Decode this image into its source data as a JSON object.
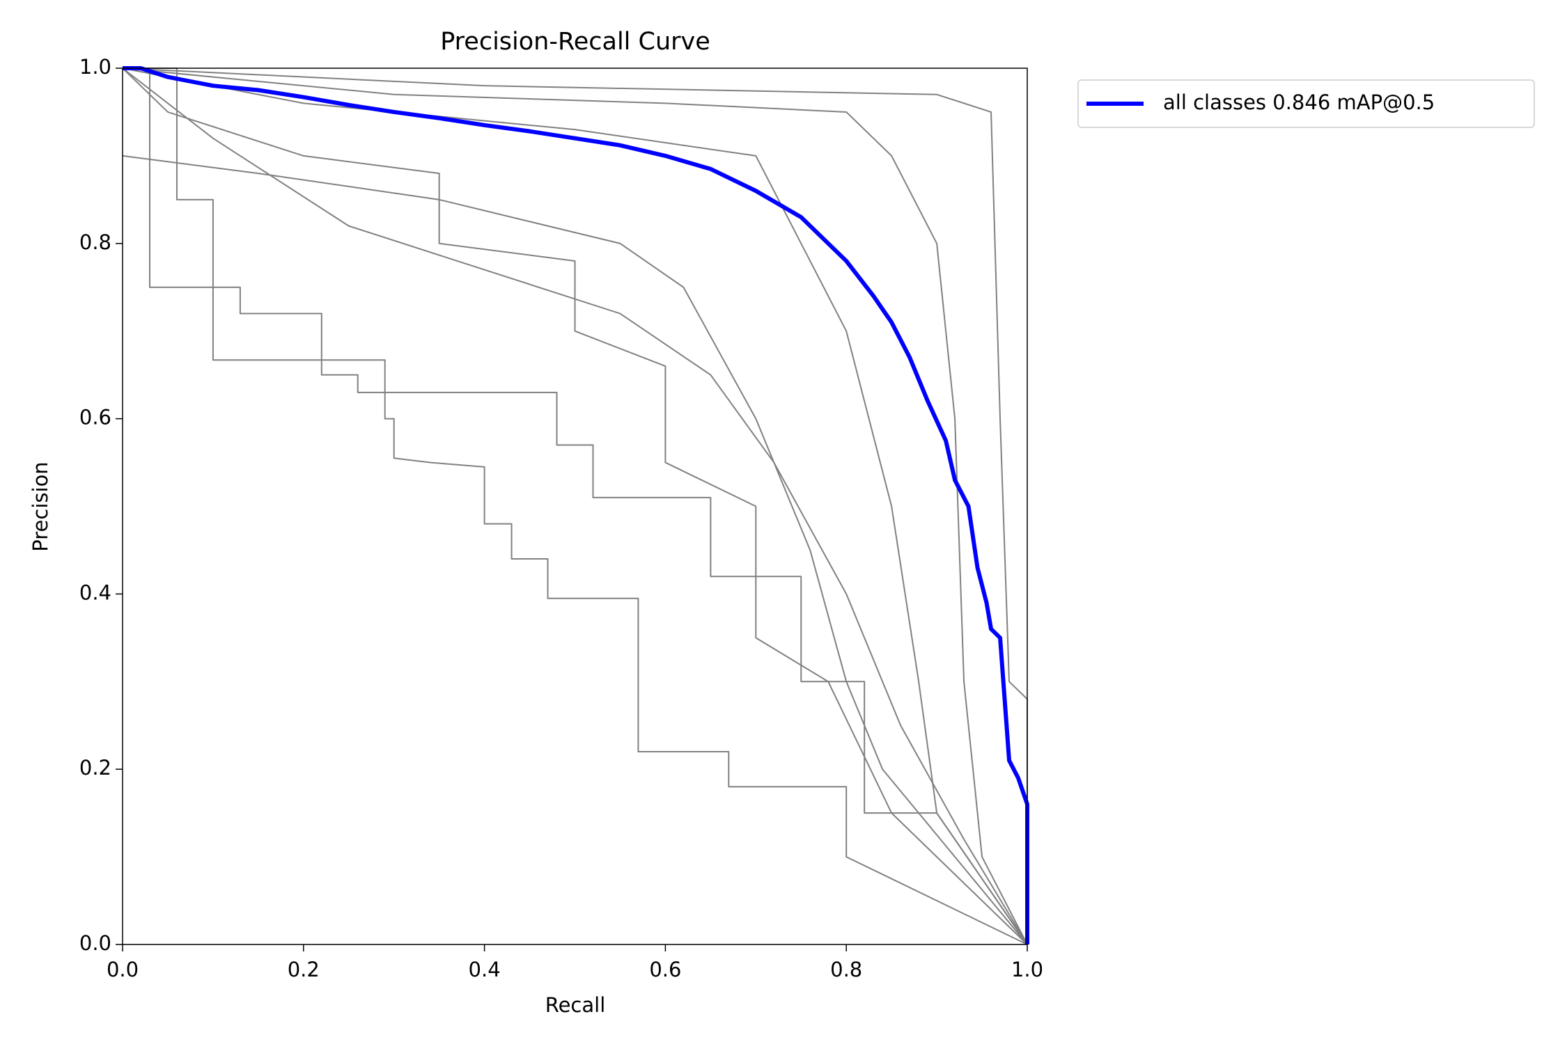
{
  "chart_data": {
    "type": "line",
    "title": "Precision-Recall Curve",
    "x_label": "Recall",
    "y_label": "Precision",
    "xlim": [
      0,
      1
    ],
    "ylim": [
      0,
      1
    ],
    "xticks": [
      {
        "value": 0,
        "label": "0.0"
      },
      0.2,
      0.4,
      0.6,
      0.8,
      {
        "value": 1,
        "label": "1.0"
      }
    ],
    "yticks": [
      {
        "value": 0,
        "label": "0.0"
      },
      0.2,
      0.4,
      0.6,
      0.8,
      {
        "value": 1,
        "label": "1.0"
      }
    ],
    "grid": false,
    "legend": "outside upper right",
    "series": [
      {
        "color": "#808080",
        "x": [
          0,
          0.03,
          0.03,
          0.1,
          0.1,
          0.29,
          0.29,
          0.3,
          0.3,
          0.34,
          0.4,
          0.4,
          0.43,
          0.43,
          0.47,
          0.47,
          0.57,
          0.57,
          0.67,
          0.67,
          0.8,
          0.8,
          1
        ],
        "values": [
          1,
          1,
          0.75,
          0.75,
          0.667,
          0.667,
          0.6,
          0.6,
          0.555,
          0.55,
          0.545,
          0.48,
          0.48,
          0.44,
          0.44,
          0.395,
          0.395,
          0.22,
          0.22,
          0.18,
          0.18,
          0.1,
          0
        ]
      },
      {
        "color": "#808080",
        "x": [
          0,
          0.06,
          0.06,
          0.1,
          0.1,
          0.13,
          0.13,
          0.22,
          0.22,
          0.26,
          0.26,
          0.48,
          0.48,
          0.52,
          0.52,
          0.65,
          0.65,
          0.75,
          0.75,
          0.82,
          0.82,
          0.9,
          1
        ],
        "values": [
          1,
          1,
          0.85,
          0.85,
          0.75,
          0.75,
          0.72,
          0.72,
          0.65,
          0.65,
          0.63,
          0.63,
          0.57,
          0.57,
          0.51,
          0.51,
          0.42,
          0.42,
          0.3,
          0.3,
          0.15,
          0.15,
          0
        ]
      },
      {
        "color": "#808080",
        "x": [
          0,
          0.05,
          0.2,
          0.35,
          0.35,
          0.5,
          0.5,
          0.6,
          0.6,
          0.7,
          0.7,
          0.78,
          0.85,
          0.9,
          1
        ],
        "values": [
          1,
          0.95,
          0.9,
          0.88,
          0.8,
          0.78,
          0.7,
          0.66,
          0.55,
          0.5,
          0.35,
          0.3,
          0.15,
          0.1,
          0
        ]
      },
      {
        "color": "#808080",
        "x": [
          0,
          0.3,
          0.6,
          0.8,
          0.85,
          0.9,
          0.92,
          0.93,
          0.95,
          1
        ],
        "values": [
          1,
          0.97,
          0.96,
          0.95,
          0.9,
          0.8,
          0.6,
          0.3,
          0.1,
          0
        ]
      },
      {
        "color": "#808080",
        "x": [
          0,
          0.2,
          0.5,
          0.7,
          0.75,
          0.8,
          0.85,
          0.88,
          0.9,
          1
        ],
        "values": [
          1,
          0.96,
          0.93,
          0.9,
          0.8,
          0.7,
          0.5,
          0.3,
          0.15,
          0
        ]
      },
      {
        "color": "#808080",
        "x": [
          0,
          0.4,
          0.9,
          0.96,
          0.97,
          0.98,
          1,
          1
        ],
        "values": [
          1,
          0.98,
          0.97,
          0.95,
          0.6,
          0.3,
          0.28,
          0
        ]
      },
      {
        "color": "#808080",
        "x": [
          0,
          0.15,
          0.35,
          0.55,
          0.62,
          0.7,
          0.76,
          0.8,
          0.84,
          0.88,
          1
        ],
        "values": [
          0.9,
          0.88,
          0.85,
          0.8,
          0.75,
          0.6,
          0.45,
          0.3,
          0.2,
          0.15,
          0
        ]
      },
      {
        "color": "#808080",
        "x": [
          0,
          0.1,
          0.25,
          0.4,
          0.55,
          0.65,
          0.72,
          0.8,
          0.86,
          0.93,
          1
        ],
        "values": [
          1,
          0.92,
          0.82,
          0.77,
          0.72,
          0.65,
          0.55,
          0.4,
          0.25,
          0.12,
          0
        ]
      },
      {
        "name": "all classes 0.846 mAP@0.5",
        "color": "#0000ff",
        "x": [
          0,
          0.02,
          0.05,
          0.1,
          0.15,
          0.2,
          0.25,
          0.3,
          0.35,
          0.4,
          0.45,
          0.5,
          0.55,
          0.6,
          0.65,
          0.7,
          0.75,
          0.8,
          0.83,
          0.85,
          0.87,
          0.89,
          0.91,
          0.92,
          0.935,
          0.945,
          0.955,
          0.96,
          0.97,
          0.975,
          0.98,
          0.99,
          1,
          1
        ],
        "values": [
          1,
          1,
          0.99,
          0.98,
          0.975,
          0.967,
          0.958,
          0.95,
          0.943,
          0.935,
          0.928,
          0.92,
          0.912,
          0.9,
          0.885,
          0.86,
          0.83,
          0.78,
          0.74,
          0.71,
          0.67,
          0.62,
          0.575,
          0.53,
          0.5,
          0.43,
          0.39,
          0.36,
          0.35,
          0.28,
          0.21,
          0.19,
          0.16,
          0
        ]
      }
    ]
  }
}
